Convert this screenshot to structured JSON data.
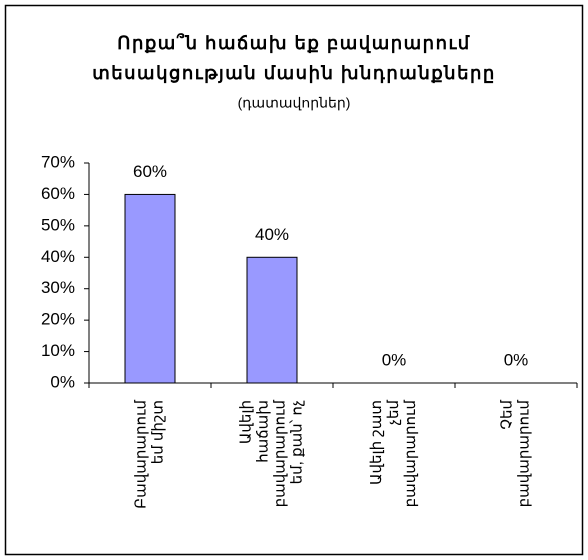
{
  "chart_data": {
    "type": "bar",
    "title": "Որքա՞ն հաճախ   եք բավարարում\nտեսակցության մասին խնդրանքները",
    "subtitle": "(դատավորներ)",
    "categories": [
      "Բավարարում\nեմ միշտ",
      "Ավելի\nհաճախ\nբավարարում\nեմ, քան՝ ոչ",
      "Ավելի շատ\nչեմ\nբավարարում",
      "Չեմ\nբավարարում"
    ],
    "values": [
      60,
      40,
      0,
      0
    ],
    "value_labels": [
      "60%",
      "40%",
      "0%",
      "0%"
    ],
    "color": "#9999ff",
    "ylim": [
      0,
      70
    ],
    "yticks": [
      {
        "value": 0,
        "label": "0%"
      },
      {
        "value": 10,
        "label": "10%"
      },
      {
        "value": 20,
        "label": "20%"
      },
      {
        "value": 30,
        "label": "30%"
      },
      {
        "value": 40,
        "label": "40%"
      },
      {
        "value": 50,
        "label": "50%"
      },
      {
        "value": 60,
        "label": "60%"
      },
      {
        "value": 70,
        "label": "70%"
      }
    ],
    "grid": false
  }
}
